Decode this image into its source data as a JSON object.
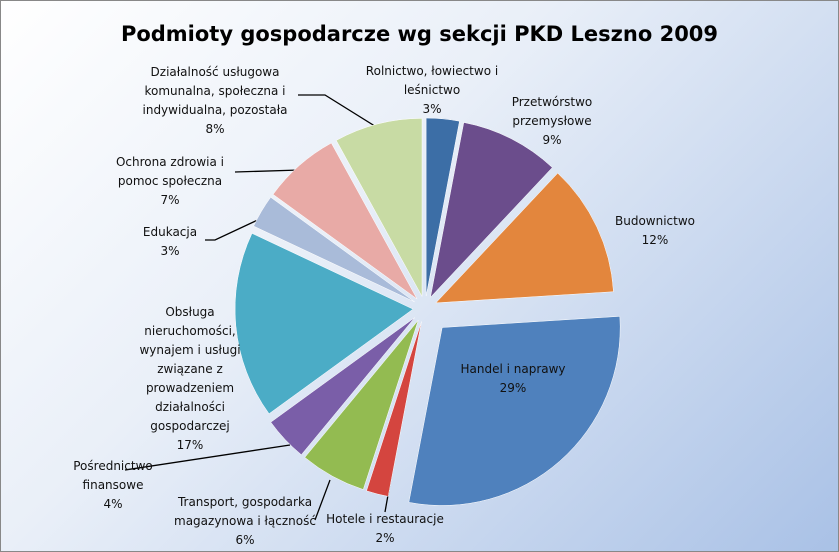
{
  "chart_data": {
    "type": "pie",
    "title": "Podmioty gospodarcze wg sekcji PKD Leszno 2009",
    "categories": [
      "Rolnictwo, łowiectwo i leśnictwo",
      "Przetwórstwo przemysłowe",
      "Budownictwo",
      "Handel i naprawy",
      "Hotele i restauracje",
      "Transport, gospodarka magazynowa i łączność",
      "Pośrednictwo finansowe",
      "Obsługa nieruchomości, wynajem i usługi związane z prowadzeniem działalności gospodarczej",
      "Edukacja",
      "Ochrona zdrowia i pomoc społeczna",
      "Działalność usługowa komunalna, społeczna i indywidualna, pozostała"
    ],
    "values": [
      3,
      9,
      12,
      29,
      2,
      6,
      4,
      17,
      3,
      7,
      8
    ],
    "value_labels": [
      "3%",
      "9%",
      "12%",
      "29%",
      "2%",
      "6%",
      "4%",
      "17%",
      "3%",
      "7%",
      "8%"
    ],
    "colors": [
      "#3c6ea6",
      "#6b4d8c",
      "#e3863d",
      "#4f81bd",
      "#d4453f",
      "#93bb51",
      "#7a5ea8",
      "#4bacc6",
      "#a9bbd9",
      "#e8aaa6",
      "#c8dba4"
    ]
  }
}
